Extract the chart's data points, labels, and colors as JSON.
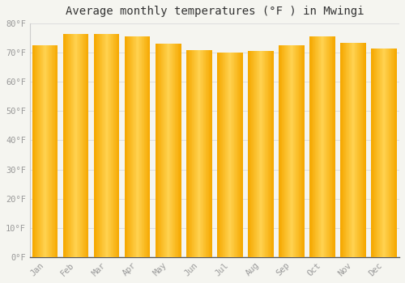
{
  "title": "Average monthly temperatures (°F ) in Mwingi",
  "months": [
    "Jan",
    "Feb",
    "Mar",
    "Apr",
    "May",
    "Jun",
    "Jul",
    "Aug",
    "Sep",
    "Oct",
    "Nov",
    "Dec"
  ],
  "values": [
    72.5,
    76.5,
    76.5,
    75.5,
    73.0,
    71.0,
    70.0,
    70.5,
    72.5,
    75.5,
    73.5,
    71.5
  ],
  "bar_color_center": "#FFD060",
  "bar_color_edge": "#F5A800",
  "bar_color_mid": "#FDB827",
  "ylim": [
    0,
    80
  ],
  "yticks": [
    0,
    10,
    20,
    30,
    40,
    50,
    60,
    70,
    80
  ],
  "background_color": "#F5F5F0",
  "grid_color": "#DDDDDD",
  "title_fontsize": 10,
  "tick_fontsize": 7.5,
  "font_color": "#999999",
  "title_color": "#333333",
  "bar_gap": 0.04
}
